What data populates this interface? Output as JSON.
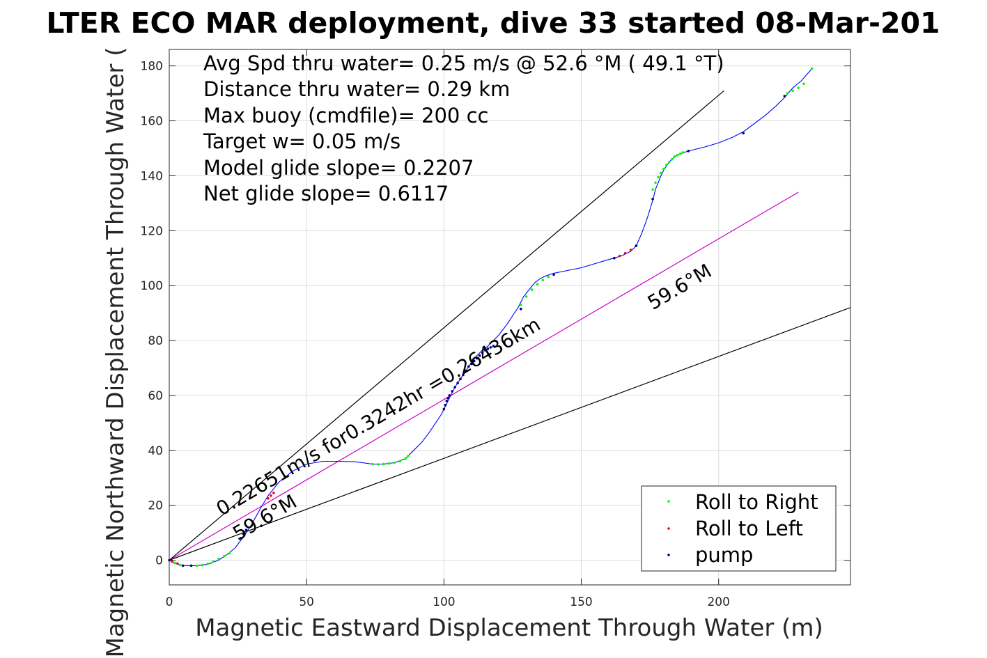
{
  "chart_data": {
    "type": "scatter",
    "title": "LTER ECO MAR deployment, dive 33 started 08-Mar-201",
    "xlabel": "Magnetic Eastward Displacement Through Water (m)",
    "ylabel": "Magnetic Northward Displacement Through Water (",
    "xlim": [
      0,
      248
    ],
    "ylim": [
      -9,
      186
    ],
    "xticks": [
      0,
      50,
      100,
      150,
      200
    ],
    "yticks": [
      0,
      20,
      40,
      60,
      80,
      100,
      120,
      140,
      160,
      180
    ],
    "grid": true,
    "legend_position": "bottom-right",
    "info_lines": [
      "Avg Spd thru water=  0.25 m/s @  52.6 °M ( 49.1 °T)",
      "Distance thru water=  0.29 km",
      "Max buoy (cmdfile)= 200 cc",
      "Target w= 0.05 m/s",
      "Model glide slope= 0.2207",
      "Net glide slope= 0.6117"
    ],
    "annotations": [
      {
        "text": "0.22651m/s for0.3242hr =0.26436km",
        "x": 19,
        "y": 16,
        "angle_deg": 30.4
      },
      {
        "text": "59.6°M",
        "x": 25,
        "y": 7,
        "angle_deg": 30.4
      },
      {
        "text": "59.6°M",
        "x": 176,
        "y": 91,
        "angle_deg": 30.4
      }
    ],
    "reference_lines": [
      {
        "name": "upper",
        "color": "#000000",
        "x": [
          0,
          202
        ],
        "y": [
          0,
          171
        ]
      },
      {
        "name": "heading",
        "color": "#cc00cc",
        "x": [
          0,
          229
        ],
        "y": [
          0,
          134
        ]
      },
      {
        "name": "lower",
        "color": "#000000",
        "x": [
          0,
          248
        ],
        "y": [
          0,
          92
        ]
      }
    ],
    "track": {
      "color": "#0000ff",
      "x": [
        0,
        3,
        6,
        10,
        14,
        18,
        21,
        24,
        27,
        30,
        33,
        36,
        40,
        45,
        50,
        56,
        62,
        68,
        74,
        78,
        82,
        86,
        89,
        92,
        95,
        97,
        99,
        100,
        101,
        102,
        103,
        104,
        106,
        108,
        110,
        112,
        114,
        116,
        118,
        120,
        123,
        125,
        127,
        128,
        129,
        131,
        133,
        135,
        137,
        140,
        145,
        150,
        155,
        160,
        162,
        165,
        168,
        170,
        172,
        174,
        176,
        177,
        178,
        179,
        180,
        182,
        184,
        186,
        189,
        195,
        200,
        205,
        209,
        213,
        217,
        221,
        224,
        227,
        230,
        234
      ],
      "y": [
        0,
        -1.5,
        -2,
        -2,
        -1.5,
        0,
        2,
        4.5,
        8.5,
        13,
        18.5,
        23.5,
        28.5,
        32.5,
        35,
        36,
        36,
        35.8,
        35,
        35,
        35.5,
        37,
        40,
        43,
        47,
        50,
        53,
        55,
        57,
        59,
        61,
        63,
        66,
        69,
        72,
        74.5,
        76.5,
        78,
        80,
        82,
        86,
        89,
        92,
        94,
        96,
        98.5,
        101,
        102.5,
        103.5,
        104.5,
        105.5,
        106.5,
        108,
        109.5,
        110,
        111,
        112.5,
        114.5,
        119,
        124.5,
        131,
        135,
        137.5,
        140,
        142,
        145,
        147,
        148,
        149,
        150.5,
        152,
        154,
        156,
        159,
        162,
        165.5,
        168.5,
        172,
        174.5,
        179
      ]
    },
    "series": [
      {
        "name": "Roll to Right",
        "color": "#00ff00",
        "x": [
          2,
          4,
          10,
          12,
          14,
          16,
          18,
          20,
          22,
          74,
          76,
          78,
          80,
          82,
          84,
          86,
          87,
          128,
          130,
          132,
          134,
          136,
          138,
          176,
          177,
          178,
          179,
          180,
          181,
          182,
          183,
          184,
          185,
          186,
          187,
          225,
          227,
          229,
          231,
          234
        ],
        "y": [
          -1,
          -1.8,
          -2,
          -1.8,
          -1.3,
          -0.5,
          0.5,
          1.5,
          2.5,
          35,
          34.9,
          35,
          35.2,
          35.5,
          36,
          37,
          38,
          93,
          96,
          98.5,
          100.5,
          102,
          103.2,
          135,
          137.5,
          139.5,
          141,
          142.5,
          144,
          145,
          146,
          147,
          147.5,
          148,
          148.5,
          170,
          171,
          172,
          173.5,
          179
        ]
      },
      {
        "name": "Roll to Left",
        "color": "#ff0000",
        "x": [
          1,
          3,
          36,
          37,
          38,
          164,
          166,
          168
        ],
        "y": [
          -0.5,
          -1.2,
          22.5,
          23.5,
          24.5,
          110.8,
          111.8,
          113
        ]
      },
      {
        "name": "pump",
        "color": "#000080",
        "x": [
          0,
          5,
          8,
          26,
          27,
          28,
          100,
          100.5,
          101,
          101.5,
          102,
          103,
          104,
          105,
          106,
          107,
          108,
          109,
          110,
          111,
          112,
          113,
          114,
          115,
          116,
          117,
          118,
          128,
          140,
          162,
          170,
          176,
          189,
          209,
          224
        ],
        "y": [
          0,
          -2,
          -2,
          8,
          9.5,
          11,
          55,
          56.5,
          58,
          59,
          60,
          61.5,
          63,
          64.5,
          66,
          67.5,
          69,
          70.5,
          71.5,
          72.5,
          73.5,
          74.5,
          75.5,
          76.5,
          77,
          77.5,
          78,
          91.5,
          104,
          110,
          114.5,
          131.5,
          149,
          155.5,
          169
        ]
      }
    ]
  }
}
